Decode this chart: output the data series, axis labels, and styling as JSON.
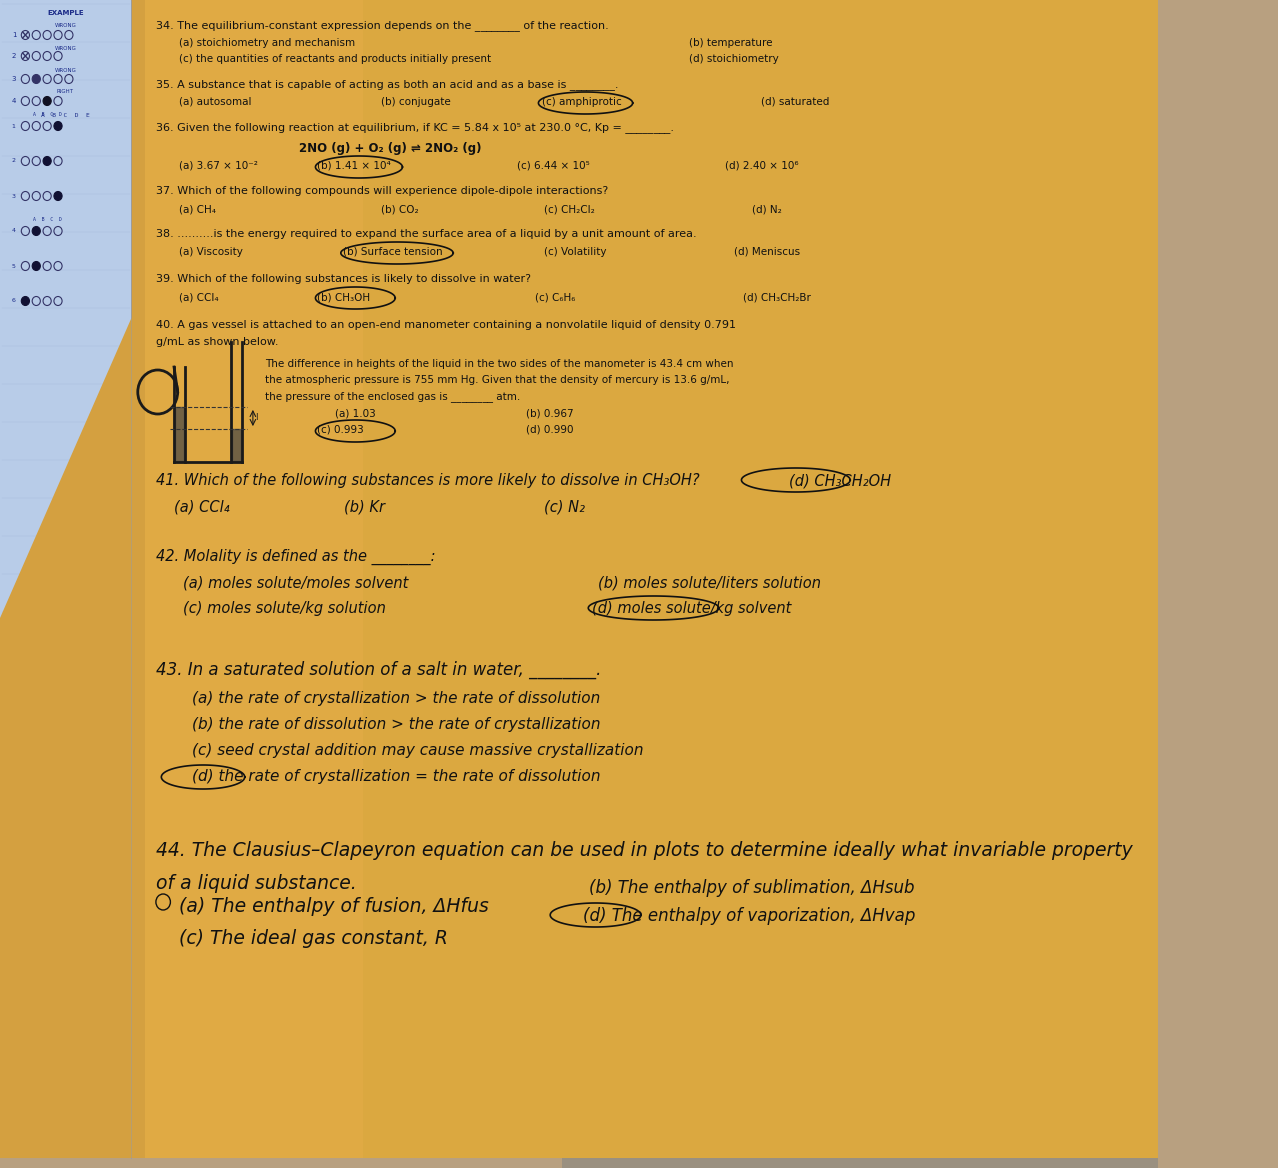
{
  "bg_color_top": "#C8B090",
  "bg_color_main": "#D4A855",
  "paper_color": "#E8A84A",
  "omr_color": "#B8CCE8",
  "text_dark": "#1a1a1a",
  "text_blue": "#1a2a88",
  "q34_text": "34. The equilibrium-constant expression depends on the ________ of the reaction.",
  "q34_a": "(a) stoichiometry and mechanism",
  "q34_b": "(b) temperature",
  "q34_c": "(c) the quantities of reactants and products initially present",
  "q34_d": "(d) stoichiometry",
  "q35_text": "35. A substance that is capable of acting as both an acid and as a base is ________.",
  "q35_a": "(a) autosomal",
  "q35_b": "(b) conjugate",
  "q35_c": "(c) amphiprotic",
  "q35_d": "(d) saturated",
  "q36_text": "36. Given the following reaction at equilibrium, if KC = 5.84 x 10⁵ at 230.0 °C, Kp = ________.",
  "q36_reaction": "2NO (g) + O₂ (g) ⇌ 2NO₂ (g)",
  "q36_a": "(a) 3.67 × 10⁻²",
  "q36_b": "(b) 1.41 × 10⁴",
  "q36_c": "(c) 6.44 × 10⁵",
  "q36_d": "(d) 2.40 × 10⁶",
  "q37_text": "37. Which of the following compounds will experience dipole-dipole interactions?",
  "q37_a": "(a) CH₄",
  "q37_b": "(b) CO₂",
  "q37_c": "(c) CH₂Cl₂",
  "q37_d": "(d) N₂",
  "q38_text": "38. ..........is the energy required to expand the surface area of a liquid by a unit amount of area.",
  "q38_a": "(a) Viscosity",
  "q38_b": "(b) Surface tension",
  "q38_c": "(c) Volatility",
  "q38_d": "(d) Meniscus",
  "q39_text": "39. Which of the following substances is likely to dissolve in water?",
  "q39_a": "(a) CCl₄",
  "q39_b": "(b) CH₃OH",
  "q39_c": "(c) C₆H₆",
  "q39_d": "(d) CH₃CH₂Br",
  "q40_text1": "40. A gas vessel is attached to an open-end manometer containing a nonvolatile liquid of density 0.791",
  "q40_text2": "g/mL as shown below.",
  "q40_sub1": "The difference in heights of the liquid in the two sides of the manometer is 43.4 cm when",
  "q40_sub2": "the atmospheric pressure is 755 mm Hg. Given that the density of mercury is 13.6 g/mL,",
  "q40_sub3": "the pressure of the enclosed gas is ________ atm.",
  "q40_a": "(a) 1.03",
  "q40_b": "(b) 0.967",
  "q40_c": "(c) 0.993",
  "q40_d": "(d) 0.990",
  "q41_text": "41. Which of the following substances is more likely to dissolve in CH₃OH?",
  "q41_a": "(a) CCl₄",
  "q41_b": "(b) Kr",
  "q41_c": "(c) N₂",
  "q41_d": "(d) CH₃CH₂OH",
  "q42_text": "42. Molality is defined as the ________:",
  "q42_a": "(a) moles solute/moles solvent",
  "q42_b": "(b) moles solute/liters solution",
  "q42_c": "(c) moles solute/kg solution",
  "q42_d": "(d) moles solute/kg solvent",
  "q43_text": "43. In a saturated solution of a salt in water, ________.",
  "q43_a": "(a) the rate of crystallization > the rate of dissolution",
  "q43_b": "(b) the rate of dissolution > the rate of crystallization",
  "q43_c": "(c) seed crystal addition may cause massive crystallization",
  "q43_d": "(d) the rate of crystallization = the rate of dissolution",
  "q44_text1": "44. The Clausius–Clapeyron equation can be used in plots to determine ideally what invariable property",
  "q44_text2": "of a liquid substance.",
  "q44_a": "(a) The enthalpy of fusion, ΔHfus",
  "q44_b": "(b) The enthalpy of sublimation, ΔHsub",
  "q44_c": "(c) The ideal gas constant, R",
  "q44_d": "(d) The enthalpy of vaporization, ΔHvap",
  "example_label": "EXAMPLE",
  "wrong_label": "WRONG",
  "right_label": "RIGHT"
}
